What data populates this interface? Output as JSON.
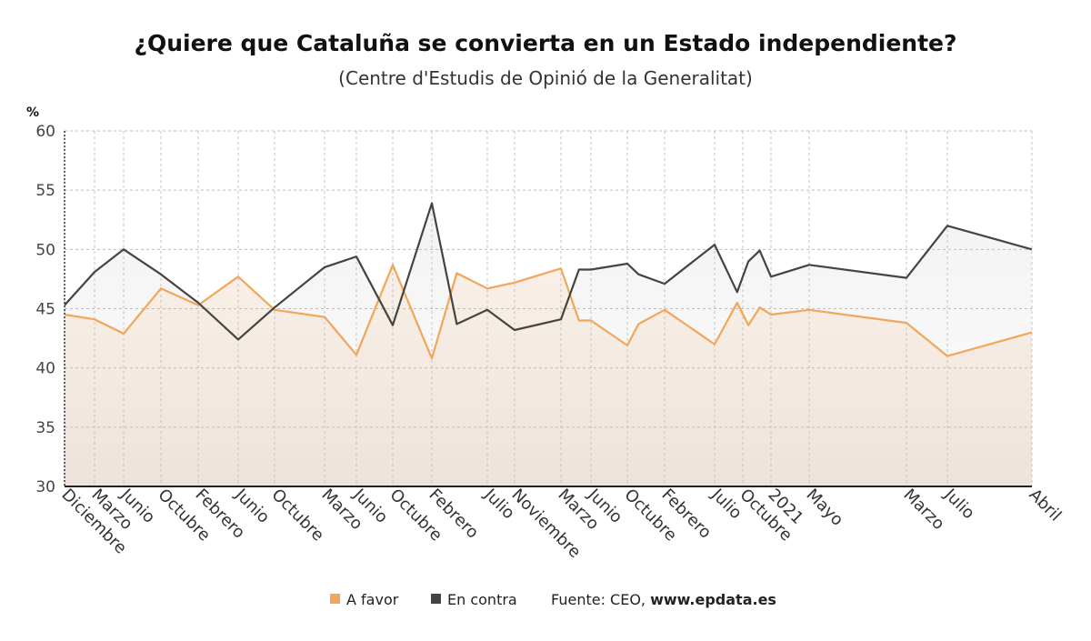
{
  "chart_data": {
    "type": "line",
    "title": "¿Quiere que Cataluña se convierta en un Estado independiente?",
    "subtitle": "(Centre d'Estudis de Opinió de la Generalitat)",
    "ylabel": "%",
    "ylim": [
      30,
      60
    ],
    "yticks": [
      30,
      35,
      40,
      45,
      50,
      55,
      60
    ],
    "grid": true,
    "legend_position": "bottom",
    "xtick_labels": [
      "Diciembre",
      "Marzo",
      "Junio",
      "Octubre",
      "Febrero",
      "Junio",
      "Octubre",
      "Marzo",
      "Junio",
      "Octubre",
      "Febrero",
      "Julio",
      "Noviembre",
      "Marzo",
      "Junio",
      "Octubre",
      "Febrero",
      "Julio",
      "Octubre",
      "2021",
      "Mayo",
      "Marzo",
      "Julio",
      "Abril"
    ],
    "series": [
      {
        "name": "A favor",
        "color": "#f2a65a",
        "points": [
          [
            0,
            44.5
          ],
          [
            1,
            44.1
          ],
          [
            2,
            42.9
          ],
          [
            3,
            46.7
          ],
          [
            4,
            45.3
          ],
          [
            5,
            47.7
          ],
          [
            6,
            44.9
          ],
          [
            7,
            44.3
          ],
          [
            8,
            41.1
          ],
          [
            9,
            48.7
          ],
          [
            10,
            40.8
          ],
          [
            10.45,
            48.0
          ],
          [
            11,
            46.7
          ],
          [
            12,
            47.2
          ],
          [
            13,
            48.4
          ],
          [
            13.6,
            44.0
          ],
          [
            14,
            44.0
          ],
          [
            15,
            41.9
          ],
          [
            15.3,
            43.7
          ],
          [
            16,
            44.9
          ],
          [
            17,
            42.0
          ],
          [
            17.8,
            45.5
          ],
          [
            18.2,
            43.6
          ],
          [
            18.6,
            45.1
          ],
          [
            19,
            44.5
          ],
          [
            20,
            44.9
          ],
          [
            21,
            43.8
          ],
          [
            22,
            41.0
          ],
          [
            23,
            43.0
          ]
        ]
      },
      {
        "name": "En contra",
        "color": "#444444",
        "points": [
          [
            0,
            45.3
          ],
          [
            1,
            48.1
          ],
          [
            2,
            50.0
          ],
          [
            3,
            47.9
          ],
          [
            4,
            45.5
          ],
          [
            5,
            42.4
          ],
          [
            6,
            45.1
          ],
          [
            7,
            48.5
          ],
          [
            8,
            49.4
          ],
          [
            9,
            43.6
          ],
          [
            10,
            53.9
          ],
          [
            10.45,
            43.7
          ],
          [
            11,
            44.9
          ],
          [
            12,
            43.2
          ],
          [
            13,
            44.1
          ],
          [
            13.6,
            48.3
          ],
          [
            14,
            48.3
          ],
          [
            15,
            48.8
          ],
          [
            15.3,
            47.9
          ],
          [
            16,
            47.1
          ],
          [
            17,
            50.4
          ],
          [
            17.8,
            46.4
          ],
          [
            18.2,
            49.0
          ],
          [
            18.6,
            49.9
          ],
          [
            19,
            47.7
          ],
          [
            20,
            48.7
          ],
          [
            21,
            47.6
          ],
          [
            22,
            52.0
          ],
          [
            23,
            50.0
          ]
        ]
      }
    ]
  },
  "legend": {
    "items": [
      {
        "label": "A favor",
        "color": "#f2a65a"
      },
      {
        "label": "En contra",
        "color": "#444444"
      }
    ],
    "source_prefix": "Fuente: CEO, ",
    "source_site": "www.epdata.es"
  }
}
